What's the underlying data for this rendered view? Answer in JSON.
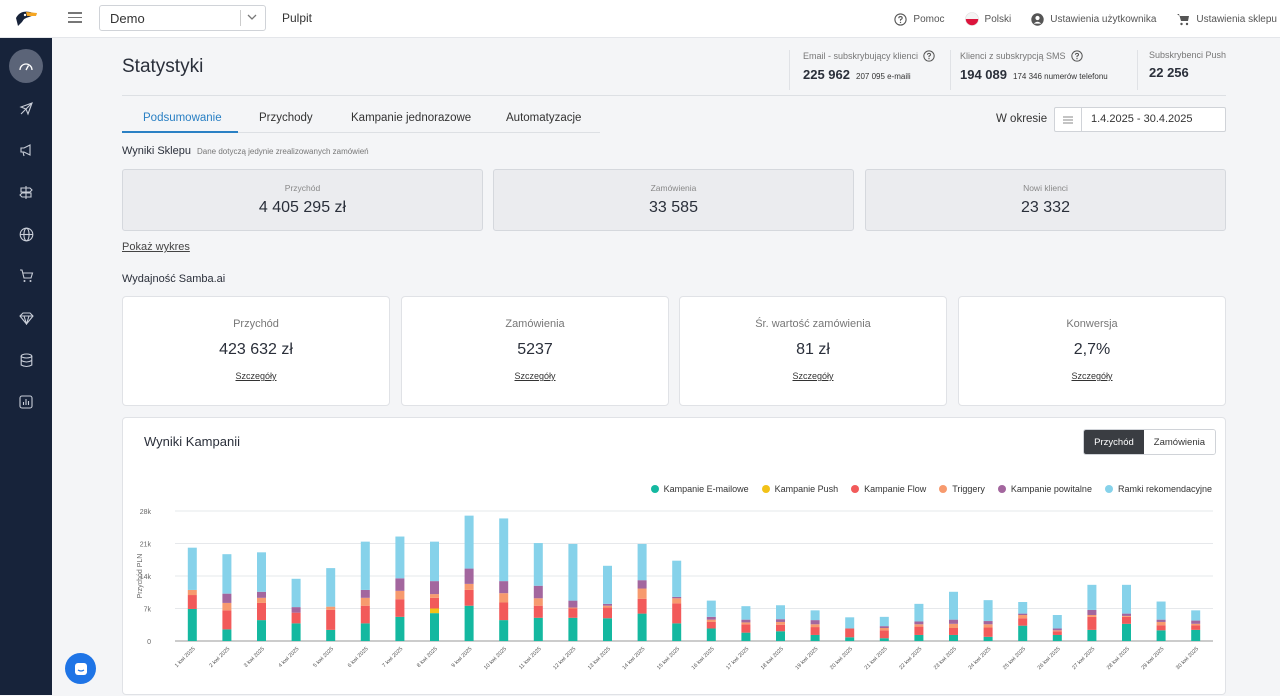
{
  "topbar": {
    "shop_select": "Demo",
    "pulpit": "Pulpit",
    "help": "Pomoc",
    "language": "Polski",
    "user_settings": "Ustawienia użytkownika",
    "shop_settings": "Ustawienia sklepu"
  },
  "sidebar": {
    "items": [
      "dashboard-icon",
      "plane-icon",
      "megaphone-icon",
      "signpost-icon",
      "globe-icon",
      "cart-icon",
      "diamond-icon",
      "database-icon",
      "report-icon"
    ],
    "active": "dashboard-icon"
  },
  "page": {
    "title": "Statystyki"
  },
  "header_stats": {
    "email": {
      "label": "Email - subskrybujący klienci",
      "value": "225 962",
      "sub": "207 095 e-maili"
    },
    "sms": {
      "label": "Klienci z subskrypcją SMS",
      "value": "194 089",
      "sub": "174 346 numerów telefonu"
    },
    "push": {
      "label": "Subskrybenci Push",
      "value": "22 256"
    }
  },
  "tabs": [
    "Podsumowanie",
    "Przychody",
    "Kampanie jednorazowe",
    "Automatyzacje"
  ],
  "active_tab": "Podsumowanie",
  "period": {
    "label": "W okresie",
    "from": "1.4.2025",
    "to": "30.4.2025",
    "range": "1.4.2025  -  30.4.2025"
  },
  "shop_results": {
    "title": "Wyniki Sklepu",
    "note": "Dane dotyczą jedynie zrealizowanych zamówień",
    "cards": [
      {
        "label": "Przychód",
        "value": "4 405 295 zł"
      },
      {
        "label": "Zamówienia",
        "value": "33 585"
      },
      {
        "label": "Nowi klienci",
        "value": "23 332"
      }
    ],
    "show_chart": "Pokaż wykres"
  },
  "samba": {
    "title": "Wydajność Samba.ai",
    "cards": [
      {
        "label": "Przychód",
        "value": "423 632 zł",
        "link": "Szczegóły"
      },
      {
        "label": "Zamówienia",
        "value": "5237",
        "link": "Szczegóły"
      },
      {
        "label": "Śr. wartość zamówienia",
        "value": "81 zł",
        "link": "Szczegóły"
      },
      {
        "label": "Konwersja",
        "value": "2,7%",
        "link": "Szczegóły"
      }
    ]
  },
  "campaigns": {
    "title": "Wyniki Kampanii",
    "toggle": [
      "Przychód",
      "Zamówienia"
    ],
    "toggle_active": "Przychód"
  },
  "colors": {
    "email": "#14b8a0",
    "push": "#f2c218",
    "flow": "#f25a5a",
    "triggers": "#f79a6e",
    "welcome": "#a3669e",
    "reco": "#86d2ea",
    "accent": "#2a80c4"
  },
  "chart_data": {
    "type": "bar",
    "stacked": true,
    "ylabel": "Przychód PLN",
    "ylim": [
      0,
      28000
    ],
    "yticks": [
      0,
      7000,
      14000,
      21000,
      28000
    ],
    "ytick_labels": [
      "0",
      "7k",
      "14k",
      "21k",
      "28k"
    ],
    "legend_position": "top-right",
    "categories": [
      "1 kwi 2025",
      "2 kwi 2025",
      "3 kwi 2025",
      "4 kwi 2025",
      "5 kwi 2025",
      "6 kwi 2025",
      "7 kwi 2025",
      "8 kwi 2025",
      "9 kwi 2025",
      "10 kwi 2025",
      "11 kwi 2025",
      "12 kwi 2025",
      "13 kwi 2025",
      "14 kwi 2025",
      "15 kwi 2025",
      "16 kwi 2025",
      "17 kwi 2025",
      "18 kwi 2025",
      "19 kwi 2025",
      "20 kwi 2025",
      "21 kwi 2025",
      "22 kwi 2025",
      "23 kwi 2025",
      "24 kwi 2025",
      "25 kwi 2025",
      "26 kwi 2025",
      "27 kwi 2025",
      "28 kwi 2025",
      "29 kwi 2025",
      "30 kwi 2025"
    ],
    "series": [
      {
        "name": "Kampanie E-mailowe",
        "color_key": "email",
        "values": [
          6900,
          2500,
          4500,
          3800,
          2400,
          3800,
          5200,
          6000,
          7600,
          4500,
          5000,
          5000,
          4900,
          5900,
          3800,
          2700,
          1800,
          2100,
          1300,
          800,
          600,
          1300,
          1300,
          900,
          3300,
          1300,
          2400,
          3700,
          2300,
          2400
        ]
      },
      {
        "name": "Kampanie Push",
        "color_key": "push",
        "values": [
          0,
          0,
          0,
          0,
          0,
          0,
          0,
          1000,
          0,
          0,
          0,
          0,
          0,
          0,
          0,
          0,
          0,
          0,
          0,
          0,
          0,
          0,
          0,
          0,
          0,
          0,
          0,
          0,
          0,
          0
        ]
      },
      {
        "name": "Kampanie Flow",
        "color_key": "flow",
        "values": [
          3000,
          4100,
          3700,
          2300,
          4300,
          3800,
          3800,
          2300,
          3400,
          3800,
          2600,
          2000,
          2300,
          3200,
          4300,
          1400,
          1800,
          1400,
          1700,
          1900,
          1700,
          1800,
          1500,
          2000,
          1600,
          800,
          2800,
          1500,
          1100,
          1000
        ]
      },
      {
        "name": "Triggery",
        "color_key": "triggers",
        "values": [
          1100,
          1600,
          1100,
          0,
          700,
          1700,
          1800,
          800,
          1300,
          2000,
          1600,
          200,
          400,
          2200,
          1100,
          500,
          400,
          600,
          600,
          0,
          500,
          500,
          900,
          700,
          700,
          200,
          400,
          200,
          700,
          300
        ]
      },
      {
        "name": "Kampanie powitalne",
        "color_key": "welcome",
        "values": [
          0,
          2000,
          1300,
          1200,
          0,
          1700,
          2700,
          2800,
          3300,
          2600,
          2700,
          1500,
          400,
          1800,
          300,
          600,
          600,
          600,
          900,
          0,
          400,
          600,
          900,
          700,
          300,
          400,
          1100,
          500,
          500,
          700
        ]
      },
      {
        "name": "Ramki rekomendacyjne",
        "color_key": "reco",
        "values": [
          9100,
          8500,
          8500,
          6100,
          8300,
          10400,
          9000,
          8500,
          11400,
          13500,
          9200,
          12200,
          8200,
          7800,
          7800,
          3500,
          2900,
          3000,
          2100,
          2400,
          2000,
          3800,
          6000,
          4500,
          2500,
          2900,
          5400,
          6200,
          3900,
          2200
        ]
      }
    ]
  },
  "chat": {
    "icon": "chat-icon"
  }
}
